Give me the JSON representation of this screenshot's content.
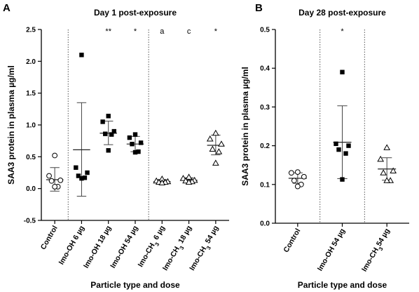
{
  "chart_data": [
    {
      "type": "scatter",
      "panel": "A",
      "title": "Day 1 post-exposure",
      "xlabel": "Particle type and dose",
      "ylabel": "SAA3 protein in plasma µg/ml",
      "ylim": [
        -0.5,
        2.5
      ],
      "yticks": [
        "-0.5",
        "0.0",
        "0.5",
        "1.0",
        "1.5",
        "2.0",
        "2.5"
      ],
      "ytick_values": [
        -0.5,
        0.0,
        0.5,
        1.0,
        1.5,
        2.0,
        2.5
      ],
      "grid": false,
      "separators_after": [
        0,
        3
      ],
      "categories": [
        {
          "label": "Control",
          "sub": "",
          "tail": "",
          "marker": "circle-open",
          "points": [
            0.52,
            0.2,
            0.13,
            0.12,
            0.03,
            0.03
          ],
          "mean": 0.14,
          "sd_low": -0.04,
          "sd_high": 0.33,
          "annotation": ""
        },
        {
          "label": "Imo-OH 6 µg",
          "sub": "",
          "tail": "",
          "marker": "square-filled",
          "points": [
            2.1,
            0.33,
            0.25,
            0.2,
            0.17,
            0.16
          ],
          "mean": 0.61,
          "sd_low": -0.12,
          "sd_high": 1.35,
          "annotation": ""
        },
        {
          "label": "Imo-OH 18 µg",
          "sub": "",
          "tail": "",
          "marker": "square-filled",
          "points": [
            1.14,
            1.05,
            0.9,
            0.86,
            0.85,
            0.6
          ],
          "mean": 0.87,
          "sd_low": 0.69,
          "sd_high": 1.06,
          "annotation": "**"
        },
        {
          "label": "Imo-OH 54 µg",
          "sub": "",
          "tail": "",
          "marker": "square-filled",
          "points": [
            0.85,
            0.8,
            0.72,
            0.7,
            0.58,
            0.57
          ],
          "mean": 0.7,
          "sd_low": 0.58,
          "sd_high": 0.82,
          "annotation": "*"
        },
        {
          "label": "Imo-CH",
          "sub": "3",
          "tail": " 6 µg",
          "marker": "triangle-open",
          "points": [
            0.15,
            0.12,
            0.11,
            0.1,
            0.1,
            0.09
          ],
          "mean": 0.11,
          "sd_low": 0.09,
          "sd_high": 0.14,
          "annotation": "a"
        },
        {
          "label": "Imo-CH",
          "sub": "3",
          "tail": " 18 µg",
          "marker": "triangle-open",
          "points": [
            0.18,
            0.16,
            0.13,
            0.12,
            0.11,
            0.1
          ],
          "mean": 0.13,
          "sd_low": 0.1,
          "sd_high": 0.17,
          "annotation": "c"
        },
        {
          "label": "Imo-CH",
          "sub": "3",
          "tail": " 54 µg",
          "marker": "triangle-open",
          "points": [
            0.87,
            0.78,
            0.7,
            0.62,
            0.58,
            0.4
          ],
          "mean": 0.68,
          "sd_low": 0.53,
          "sd_high": 0.84,
          "annotation": "*"
        }
      ]
    },
    {
      "type": "scatter",
      "panel": "B",
      "title": "Day 28 post-exposure",
      "xlabel": "Particle type and dose",
      "ylabel": "SAA3 protein in plasma µg/ml",
      "ylim": [
        0.0,
        0.5
      ],
      "yticks": [
        "0.0",
        "0.1",
        "0.2",
        "0.3",
        "0.4",
        "0.5"
      ],
      "ytick_values": [
        0.0,
        0.1,
        0.2,
        0.3,
        0.4,
        0.5
      ],
      "grid": false,
      "separators_after": [
        0,
        1
      ],
      "categories": [
        {
          "label": "Control",
          "sub": "",
          "tail": "",
          "marker": "circle-open",
          "points": [
            0.132,
            0.13,
            0.12,
            0.11,
            0.1,
            0.095
          ],
          "mean": 0.116,
          "sd_low": 0.103,
          "sd_high": 0.13,
          "annotation": ""
        },
        {
          "label": "Imo-OH 54 µg",
          "sub": "",
          "tail": "",
          "marker": "square-filled",
          "points": [
            0.39,
            0.205,
            0.2,
            0.19,
            0.18,
            0.113
          ],
          "mean": 0.209,
          "sd_low": 0.115,
          "sd_high": 0.303,
          "annotation": "*"
        },
        {
          "label": "Imo-CH",
          "sub": "3",
          "tail": "54 µg",
          "marker": "triangle-open",
          "points": [
            0.195,
            0.165,
            0.135,
            0.13,
            0.11,
            0.11
          ],
          "mean": 0.14,
          "sd_low": 0.111,
          "sd_high": 0.169,
          "annotation": ""
        }
      ]
    }
  ]
}
